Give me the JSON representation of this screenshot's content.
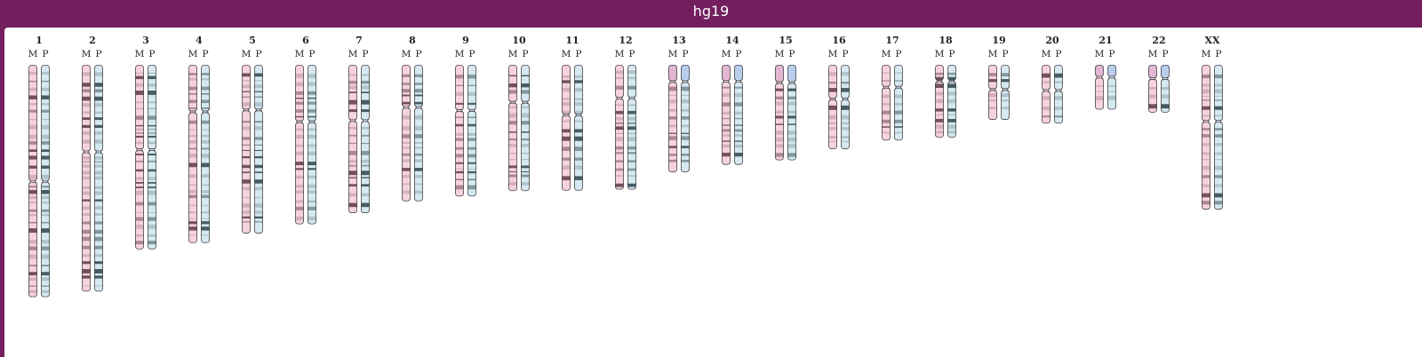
{
  "window": {
    "title": "hg19"
  },
  "homolog_labels": {
    "maternal": "M",
    "paternal": "P"
  },
  "colors": {
    "maternal_fill": "#f6d3dc",
    "maternal_band": "#6e4a55",
    "maternal_stalk": "#e3b6d2",
    "paternal_fill": "#d6e8f0",
    "paternal_band": "#3e555e",
    "paternal_stalk": "#b9cdec",
    "outline": "#4a4a4a"
  },
  "chromosomes": [
    {
      "name": "1",
      "length": 249.2,
      "centromere": 125.0,
      "acrocentric": false
    },
    {
      "name": "2",
      "length": 243.2,
      "centromere": 93.3,
      "acrocentric": false
    },
    {
      "name": "3",
      "length": 198.0,
      "centromere": 91.0,
      "acrocentric": false
    },
    {
      "name": "4",
      "length": 191.2,
      "centromere": 50.4,
      "acrocentric": false
    },
    {
      "name": "5",
      "length": 180.9,
      "centromere": 48.4,
      "acrocentric": false
    },
    {
      "name": "6",
      "length": 171.1,
      "centromere": 61.0,
      "acrocentric": false
    },
    {
      "name": "7",
      "length": 159.1,
      "centromere": 59.9,
      "acrocentric": false
    },
    {
      "name": "8",
      "length": 146.4,
      "centromere": 45.6,
      "acrocentric": false
    },
    {
      "name": "9",
      "length": 141.2,
      "centromere": 49.0,
      "acrocentric": false
    },
    {
      "name": "10",
      "length": 135.5,
      "centromere": 40.2,
      "acrocentric": false
    },
    {
      "name": "11",
      "length": 135.0,
      "centromere": 53.7,
      "acrocentric": false
    },
    {
      "name": "12",
      "length": 133.9,
      "centromere": 35.8,
      "acrocentric": false
    },
    {
      "name": "13",
      "length": 115.2,
      "centromere": 17.9,
      "acrocentric": true
    },
    {
      "name": "14",
      "length": 107.3,
      "centromere": 17.6,
      "acrocentric": true
    },
    {
      "name": "15",
      "length": 102.5,
      "centromere": 19.0,
      "acrocentric": true
    },
    {
      "name": "16",
      "length": 90.4,
      "centromere": 36.6,
      "acrocentric": false
    },
    {
      "name": "17",
      "length": 81.2,
      "centromere": 24.0,
      "acrocentric": false
    },
    {
      "name": "18",
      "length": 78.1,
      "centromere": 17.2,
      "acrocentric": false
    },
    {
      "name": "19",
      "length": 59.1,
      "centromere": 26.5,
      "acrocentric": false
    },
    {
      "name": "20",
      "length": 63.0,
      "centromere": 27.5,
      "acrocentric": false
    },
    {
      "name": "21",
      "length": 48.1,
      "centromere": 13.2,
      "acrocentric": true
    },
    {
      "name": "22",
      "length": 51.3,
      "centromere": 14.7,
      "acrocentric": true
    },
    {
      "name": "XX",
      "length": 155.3,
      "centromere": 60.6,
      "acrocentric": false
    }
  ]
}
